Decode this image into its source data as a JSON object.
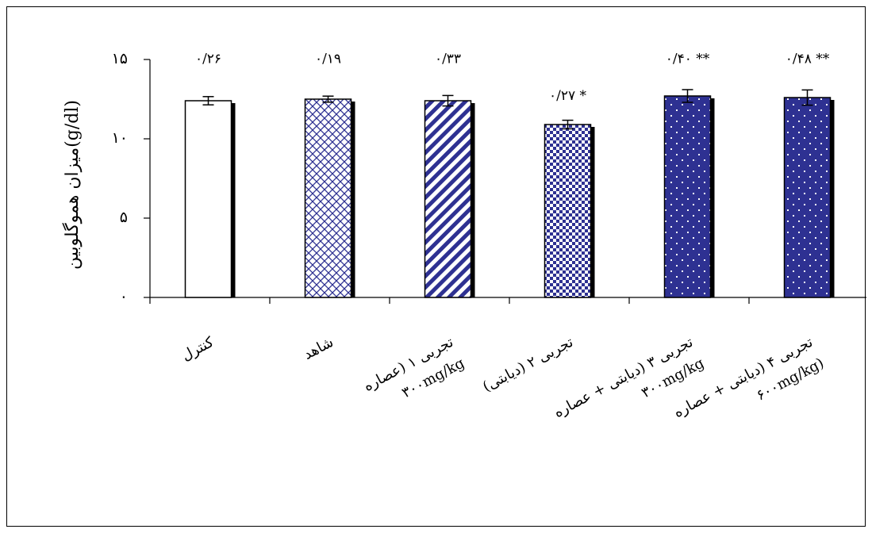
{
  "chart_data": {
    "type": "bar",
    "ylabel": "میزان هموگلوبین(g/dl)",
    "ylim": [
      0,
      15
    ],
    "y_ticks": [
      "۰",
      "۵",
      "۱۰",
      "۱۵"
    ],
    "y_tick_values": [
      0,
      5,
      10,
      15
    ],
    "categories": [
      {
        "line1": "کنترل",
        "line2": ""
      },
      {
        "line1": "شاهد",
        "line2": ""
      },
      {
        "line1": "تجربی ۱ (عصاره",
        "line2": "۳۰۰mg/kg"
      },
      {
        "line1": "تجربی ۲ (دیابتی)",
        "line2": ""
      },
      {
        "line1": "تجربی ۳ (دیابتی + عصاره",
        "line2": "۳۰۰mg/kg"
      },
      {
        "line1": "تجربی ۴ (دیابتی + عصاره",
        "line2": "۶۰۰mg/kg)"
      }
    ],
    "values": [
      12.4,
      12.5,
      12.4,
      10.9,
      12.7,
      12.6
    ],
    "errors": [
      0.26,
      0.19,
      0.33,
      0.27,
      0.4,
      0.48
    ],
    "error_labels": [
      "۰/۲۶",
      "۰/۱۹",
      "۰/۳۳",
      "۰/۲۷",
      "۰/۴۰",
      "۰/۴۸"
    ],
    "significance": [
      "",
      "",
      "",
      "*",
      "**",
      "**"
    ],
    "patterns": [
      "white",
      "crosshatch",
      "diagonal",
      "checker",
      "dots",
      "dots"
    ],
    "colors": {
      "fill": "#2e3192",
      "white": "#ffffff",
      "edge": "#000000"
    },
    "grid": false,
    "legend": "none"
  }
}
